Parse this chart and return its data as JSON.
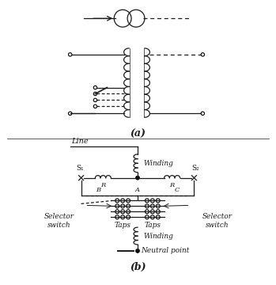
{
  "bg_color": "#ffffff",
  "line_color": "#1a1a1a",
  "title_a": "(a)",
  "title_b": "(b)",
  "label_line": "Line",
  "label_winding1": "Winding",
  "label_winding2": "Winding",
  "label_neutral": "Neutral point",
  "label_taps1": "Taps",
  "label_taps2": "Taps",
  "label_selector1": "Selector\nswitch",
  "label_selector2": "Selector\nswitch",
  "label_s1": "S₁",
  "label_s2": "S₂",
  "label_r1": "R",
  "label_r2": "R",
  "label_b": "B",
  "label_a": "A",
  "label_c": "C",
  "fig_w": 3.49,
  "fig_h": 3.6,
  "dpi": 100
}
